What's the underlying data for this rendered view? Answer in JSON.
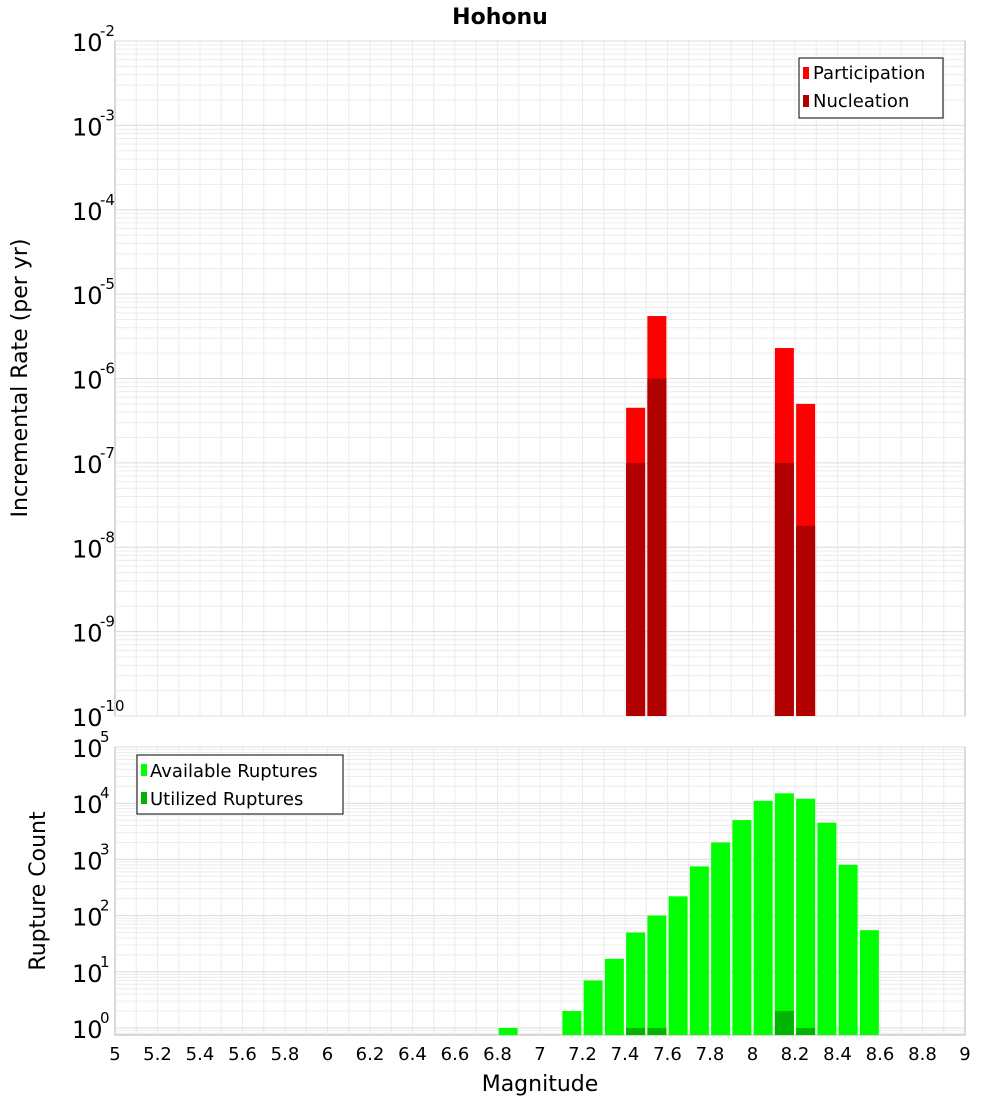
{
  "title": "Hohonu",
  "chart_data": [
    {
      "type": "bar",
      "ylabel": "Incremental Rate (per yr)",
      "xlim": [
        5,
        9
      ],
      "ylim": [
        1e-10,
        0.01
      ],
      "yscale": "log",
      "grid": true,
      "legend_position": "top-right",
      "y_ticks": [
        {
          "base": "10",
          "exp": "-10"
        },
        {
          "base": "10",
          "exp": "-9"
        },
        {
          "base": "10",
          "exp": "-8"
        },
        {
          "base": "10",
          "exp": "-7"
        },
        {
          "base": "10",
          "exp": "-6"
        },
        {
          "base": "10",
          "exp": "-5"
        },
        {
          "base": "10",
          "exp": "-4"
        },
        {
          "base": "10",
          "exp": "-3"
        },
        {
          "base": "10",
          "exp": "-2"
        }
      ],
      "series": [
        {
          "name": "Participation",
          "color": "#ff0000",
          "points": [
            [
              7.45,
              4.5e-07
            ],
            [
              7.55,
              5.5e-06
            ],
            [
              8.15,
              2.3e-06
            ],
            [
              8.25,
              5e-07
            ]
          ]
        },
        {
          "name": "Nucleation",
          "color": "#b00000",
          "points": [
            [
              7.45,
              1e-07
            ],
            [
              7.55,
              1e-06
            ],
            [
              8.15,
              1e-07
            ],
            [
              8.25,
              1.8e-08
            ]
          ]
        }
      ]
    },
    {
      "type": "bar",
      "ylabel": "Rupture Count",
      "xlabel": "Magnitude",
      "xlim": [
        5,
        9
      ],
      "ylim": [
        0.75,
        100000.0
      ],
      "yscale": "log",
      "grid": true,
      "legend_position": "top-left",
      "x_ticks": [
        "5",
        "5.2",
        "5.4",
        "5.6",
        "5.8",
        "6",
        "6.2",
        "6.4",
        "6.6",
        "6.8",
        "7",
        "7.2",
        "7.4",
        "7.6",
        "7.8",
        "8",
        "8.2",
        "8.4",
        "8.6",
        "8.8",
        "9"
      ],
      "y_ticks": [
        {
          "base": "10",
          "exp": "0"
        },
        {
          "base": "10",
          "exp": "1"
        },
        {
          "base": "10",
          "exp": "2"
        },
        {
          "base": "10",
          "exp": "3"
        },
        {
          "base": "10",
          "exp": "4"
        },
        {
          "base": "10",
          "exp": "5"
        }
      ],
      "series": [
        {
          "name": "Available Ruptures",
          "color": "#00ff00",
          "points": [
            [
              6.85,
              1
            ],
            [
              7.15,
              2
            ],
            [
              7.25,
              7
            ],
            [
              7.35,
              17
            ],
            [
              7.45,
              50
            ],
            [
              7.55,
              100
            ],
            [
              7.65,
              220
            ],
            [
              7.75,
              750
            ],
            [
              7.85,
              2000
            ],
            [
              7.95,
              5000
            ],
            [
              8.05,
              11000
            ],
            [
              8.15,
              15000
            ],
            [
              8.25,
              12000
            ],
            [
              8.35,
              4500
            ],
            [
              8.45,
              800
            ],
            [
              8.55,
              55
            ]
          ]
        },
        {
          "name": "Utilized Ruptures",
          "color": "#00b400",
          "points": [
            [
              7.45,
              1
            ],
            [
              7.55,
              1
            ],
            [
              8.15,
              2
            ],
            [
              8.25,
              1
            ]
          ]
        }
      ]
    }
  ]
}
